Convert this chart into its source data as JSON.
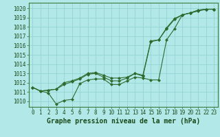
{
  "title": "Graphe pression niveau de la mer (hPa)",
  "background_color": "#b2e8e8",
  "grid_color": "#8fcfcf",
  "line_color": "#2d6a2d",
  "marker_color": "#2d6a2d",
  "xlim": [
    -0.5,
    23.5
  ],
  "ylim": [
    1009.4,
    1020.6
  ],
  "yticks": [
    1010,
    1011,
    1012,
    1013,
    1014,
    1015,
    1016,
    1017,
    1018,
    1019,
    1020
  ],
  "xticks": [
    0,
    1,
    2,
    3,
    4,
    5,
    6,
    7,
    8,
    9,
    10,
    11,
    12,
    13,
    14,
    15,
    16,
    17,
    18,
    19,
    20,
    21,
    22,
    23
  ],
  "series": [
    [
      1011.5,
      1011.1,
      1010.9,
      1009.7,
      1010.1,
      1010.2,
      1011.9,
      1012.3,
      1012.4,
      1012.4,
      1011.8,
      1011.8,
      1012.2,
      1012.6,
      1012.5,
      1012.3,
      1012.3,
      1016.6,
      1017.8,
      1019.3,
      1019.5,
      1019.7,
      1019.9,
      1019.9
    ],
    [
      1011.5,
      1011.1,
      1011.2,
      1011.3,
      1011.8,
      1012.1,
      1012.4,
      1012.9,
      1013.0,
      1012.6,
      1012.2,
      1012.2,
      1012.5,
      1013.0,
      1012.8,
      1016.5,
      1016.6,
      1017.8,
      1018.8,
      1019.3,
      1019.5,
      1019.8,
      1019.9,
      1019.9
    ],
    [
      1011.5,
      1011.1,
      1011.2,
      1011.3,
      1012.0,
      1012.2,
      1012.5,
      1013.0,
      1013.1,
      1012.8,
      1012.5,
      1012.5,
      1012.6,
      1013.0,
      1012.7,
      1016.4,
      1016.6,
      1017.9,
      1018.9,
      1019.3,
      1019.5,
      1019.8,
      1019.9,
      1019.9
    ]
  ],
  "title_fontsize": 7,
  "tick_fontsize": 5.5
}
